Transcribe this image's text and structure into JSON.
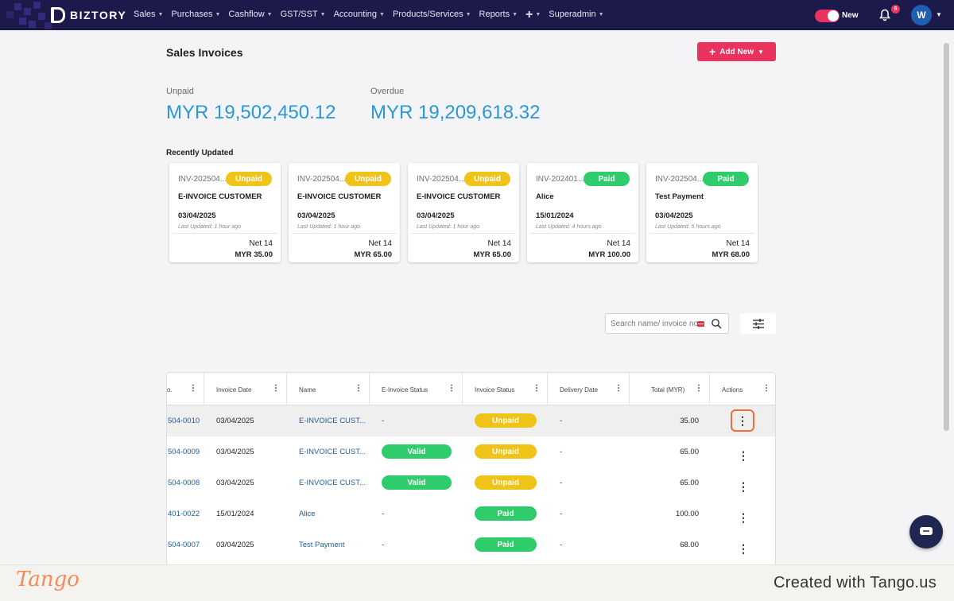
{
  "nav": {
    "brand": "BIZTORY",
    "menu": [
      "Sales",
      "Purchases",
      "Cashflow",
      "GST/SST",
      "Accounting",
      "Products/Services",
      "Reports",
      "Superadmin"
    ],
    "new_label": "New",
    "notification_count": "9",
    "avatar_initial": "W"
  },
  "page": {
    "title": "Sales Invoices",
    "add_new_label": "Add New"
  },
  "stats": {
    "unpaid_label": "Unpaid",
    "unpaid_value": "MYR 19,502,450.12",
    "overdue_label": "Overdue",
    "overdue_value": "MYR 19,209,618.32"
  },
  "recent": {
    "title": "Recently Updated",
    "cards": [
      {
        "invoice_no": "INV-202504...",
        "status": "Unpaid",
        "name": "E-INVOICE CUSTOMER",
        "date": "03/04/2025",
        "updated": "Last Updated: 1 hour ago",
        "term": "Net 14",
        "amount": "MYR 35.00"
      },
      {
        "invoice_no": "INV-202504...",
        "status": "Unpaid",
        "name": "E-INVOICE CUSTOMER",
        "date": "03/04/2025",
        "updated": "Last Updated: 1 hour ago",
        "term": "Net 14",
        "amount": "MYR 65.00"
      },
      {
        "invoice_no": "INV-202504...",
        "status": "Unpaid",
        "name": "E-INVOICE CUSTOMER",
        "date": "03/04/2025",
        "updated": "Last Updated: 1 hour ago",
        "term": "Net 14",
        "amount": "MYR 65.00"
      },
      {
        "invoice_no": "INV-202401...",
        "status": "Paid",
        "name": "Alice",
        "date": "15/01/2024",
        "updated": "Last Updated: 4 hours ago",
        "term": "Net 14",
        "amount": "MYR 100.00"
      },
      {
        "invoice_no": "INV-202504...",
        "status": "Paid",
        "name": "Test Payment",
        "date": "03/04/2025",
        "updated": "Last Updated: 5 hours ago",
        "term": "Net 14",
        "amount": "MYR 68.00"
      }
    ]
  },
  "search": {
    "placeholder": "Search name/ invoice no."
  },
  "table": {
    "headers": [
      "o.",
      "Invoice Date",
      "Name",
      "E-Invoice Status",
      "Invoice Status",
      "Delivery Date",
      "Total (MYR)",
      "Actions"
    ],
    "rows": [
      {
        "no": "504-0010",
        "date": "03/04/2025",
        "name": "E-INVOICE CUST...",
        "einvoice": "-",
        "status": "Unpaid",
        "delivery": "-",
        "total": "35.00"
      },
      {
        "no": "504-0009",
        "date": "03/04/2025",
        "name": "E-INVOICE CUST...",
        "einvoice": "Valid",
        "status": "Unpaid",
        "delivery": "-",
        "total": "65.00"
      },
      {
        "no": "504-0008",
        "date": "03/04/2025",
        "name": "E-INVOICE CUST...",
        "einvoice": "Valid",
        "status": "Unpaid",
        "delivery": "-",
        "total": "65.00"
      },
      {
        "no": "401-0022",
        "date": "15/01/2024",
        "name": "Alice",
        "einvoice": "-",
        "status": "Paid",
        "delivery": "-",
        "total": "100.00"
      },
      {
        "no": "504-0007",
        "date": "03/04/2025",
        "name": "Test Payment",
        "einvoice": "-",
        "status": "Paid",
        "delivery": "-",
        "total": "68.00"
      }
    ]
  },
  "footer": {
    "brand": "Tango",
    "created": "Created with Tango.us"
  },
  "colors": {
    "accent": "#e9335e",
    "nav": "#1c1a4a",
    "amount": "#2a98d4",
    "unpaid": "#f0c318",
    "paid": "#2ecc6a"
  }
}
